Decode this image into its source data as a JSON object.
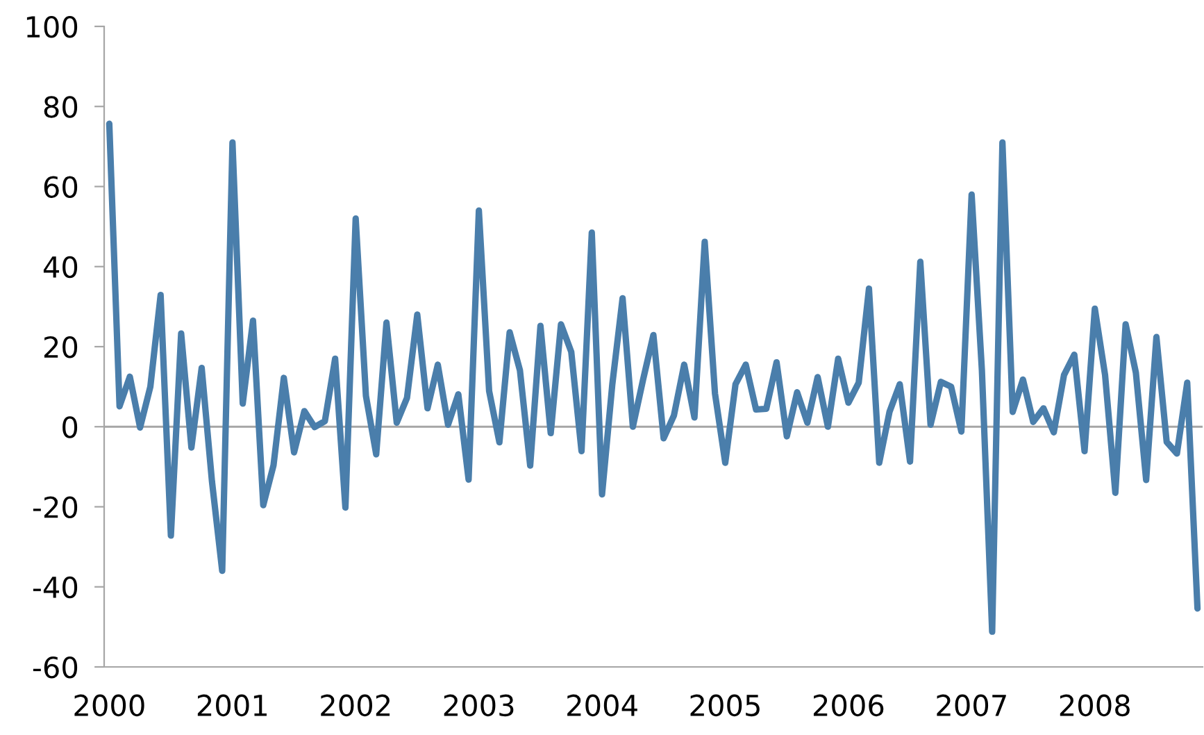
{
  "chart_data": {
    "type": "line",
    "categories": [
      "2000",
      null,
      null,
      null,
      null,
      null,
      null,
      null,
      null,
      null,
      null,
      null,
      "2001",
      null,
      null,
      null,
      null,
      null,
      null,
      null,
      null,
      null,
      null,
      null,
      "2002",
      null,
      null,
      null,
      null,
      null,
      null,
      null,
      null,
      null,
      null,
      null,
      "2003",
      null,
      null,
      null,
      null,
      null,
      null,
      null,
      null,
      null,
      null,
      null,
      "2004",
      null,
      null,
      null,
      null,
      null,
      null,
      null,
      null,
      null,
      null,
      null,
      "2005",
      null,
      null,
      null,
      null,
      null,
      null,
      null,
      null,
      null,
      null,
      null,
      "2006",
      null,
      null,
      null,
      null,
      null,
      null,
      null,
      null,
      null,
      null,
      null,
      "2007",
      null,
      null,
      null,
      null,
      null,
      null,
      null,
      null,
      null,
      null,
      null,
      "2008",
      null,
      null,
      null,
      null,
      null,
      null,
      null,
      null,
      null,
      null
    ],
    "series": [
      {
        "color": "#4a7eab",
        "values": [
          75.7,
          5.1,
          12.5,
          -0.2,
          10,
          32.9,
          -27.2,
          23.3,
          -5.2,
          14.7,
          -13.6,
          -36,
          71,
          5.8,
          26.5,
          -19.6,
          -9.6,
          12.2,
          -6.4,
          3.9,
          -0.1,
          1.4,
          17,
          -20.2,
          52,
          7.7,
          -6.9,
          26,
          1,
          7.2,
          28,
          4.6,
          15.5,
          0.5,
          8.1,
          -13.2,
          54,
          8.9,
          -3.9,
          23.6,
          14.1,
          -9.7,
          25.2,
          -1.6,
          25.6,
          18.7,
          -6.1,
          48.5,
          -16.9,
          10.6,
          32.1,
          0,
          11.8,
          22.9,
          -2.9,
          2.8,
          15.5,
          2.3,
          46.2,
          8.3,
          -9,
          10.6,
          15.5,
          4.3,
          4.5,
          16.1,
          -2.4,
          8.6,
          1,
          12.4,
          0,
          17,
          6,
          11,
          34.5,
          -9,
          3.7,
          10.6,
          -8.7,
          41.2,
          0.5,
          11.2,
          10,
          -1.2,
          58,
          14.1,
          -51.2,
          71,
          3.7,
          11.8,
          1.2,
          4.6,
          -1.4,
          12.9,
          18,
          -6.1,
          29.5,
          12.9,
          -16.5,
          25.6,
          13.5,
          -13.3,
          22.4,
          -3.8,
          -6.7,
          11,
          -45.4
        ]
      }
    ],
    "ylim": [
      -60,
      100
    ],
    "yticks": [
      -60,
      -40,
      -20,
      0,
      20,
      40,
      60,
      80,
      100
    ],
    "ref_lines": [
      {
        "axis": "y",
        "value": 0,
        "color": "#a6a6a6"
      }
    ],
    "grid": false,
    "marker": "none",
    "line_style": "solid"
  }
}
